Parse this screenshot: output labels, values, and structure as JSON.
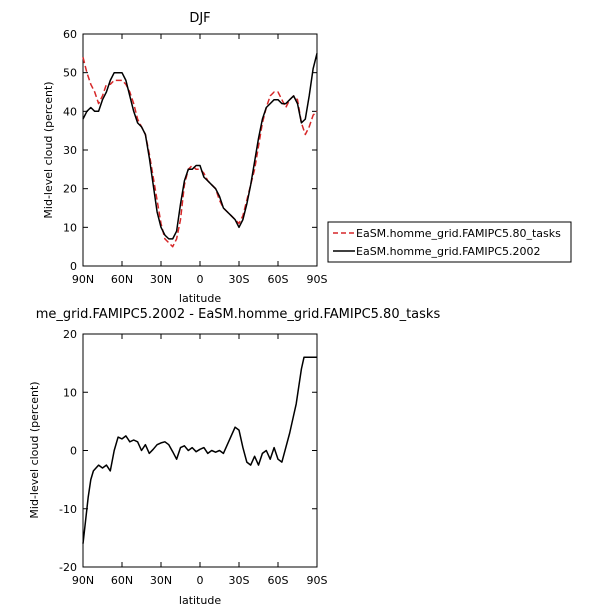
{
  "chart_data": [
    {
      "type": "line",
      "title": "DJF",
      "xlabel": "latitude",
      "ylabel": "Mid-level cloud (percent)",
      "xlim": [
        90,
        -90
      ],
      "ylim": [
        0,
        60
      ],
      "xtick_values": [
        90,
        60,
        30,
        0,
        -30,
        -60,
        -90
      ],
      "xtick_labels": [
        "90N",
        "60N",
        "30N",
        "0",
        "30S",
        "60S",
        "90S"
      ],
      "ytick_values": [
        0,
        10,
        20,
        30,
        40,
        50,
        60
      ],
      "ytick_labels": [
        "0",
        "10",
        "20",
        "30",
        "40",
        "50",
        "60"
      ],
      "legend": {
        "placement": "right-outside"
      },
      "series": [
        {
          "name": "EaSM.homme_grid.FAMIPC5.80_tasks",
          "color": "#d62728",
          "dash": "dashed",
          "x": [
            90,
            87,
            84,
            81,
            78,
            75,
            72,
            69,
            66,
            63,
            60,
            57,
            54,
            51,
            48,
            45,
            42,
            39,
            36,
            33,
            30,
            27,
            24,
            21,
            18,
            15,
            12,
            9,
            6,
            3,
            0,
            -3,
            -6,
            -9,
            -12,
            -15,
            -18,
            -21,
            -24,
            -27,
            -30,
            -33,
            -36,
            -39,
            -42,
            -45,
            -48,
            -51,
            -54,
            -57,
            -60,
            -63,
            -66,
            -69,
            -72,
            -75,
            -78,
            -81,
            -84,
            -87,
            -90
          ],
          "y": [
            54,
            50,
            47,
            45,
            42,
            44,
            47,
            47,
            48,
            48,
            48,
            47,
            45,
            42,
            38,
            36,
            34,
            29,
            23,
            17,
            11,
            7,
            6,
            5,
            7,
            12,
            21,
            25,
            26,
            25,
            25,
            24,
            22,
            21,
            20,
            17,
            15,
            14,
            13,
            12,
            11,
            13,
            17,
            21,
            25,
            31,
            37,
            41,
            44,
            45,
            45,
            43,
            41,
            43,
            44,
            43,
            37,
            34,
            36,
            39,
            40
          ]
        },
        {
          "name": "EaSM.homme_grid.FAMIPC5.2002",
          "color": "#000000",
          "dash": "solid",
          "x": [
            90,
            87,
            84,
            81,
            78,
            75,
            72,
            69,
            66,
            63,
            60,
            57,
            54,
            51,
            48,
            45,
            42,
            39,
            36,
            33,
            30,
            27,
            24,
            21,
            18,
            15,
            12,
            9,
            6,
            3,
            0,
            -3,
            -6,
            -9,
            -12,
            -15,
            -18,
            -21,
            -24,
            -27,
            -30,
            -33,
            -36,
            -39,
            -42,
            -45,
            -48,
            -51,
            -54,
            -57,
            -60,
            -63,
            -66,
            -69,
            -72,
            -75,
            -78,
            -81,
            -84,
            -87,
            -90
          ],
          "y": [
            38,
            40,
            41,
            40,
            40,
            43,
            45,
            48,
            50,
            50,
            50,
            48,
            44,
            40,
            37,
            36,
            34,
            28,
            21,
            14,
            10,
            8,
            7,
            7,
            9,
            16,
            22,
            25,
            25,
            26,
            26,
            23,
            22,
            21,
            20,
            18,
            15,
            14,
            13,
            12,
            10,
            12,
            16,
            21,
            27,
            33,
            38,
            41,
            42,
            43,
            43,
            42,
            42,
            43,
            44,
            42,
            37,
            38,
            44,
            51,
            55
          ]
        }
      ]
    },
    {
      "type": "line",
      "title": "me_grid.FAMIPC5.2002 - EaSM.homme_grid.FAMIPC5.80_tasks",
      "xlabel": "latitude",
      "ylabel": "Mid-level cloud (percent)",
      "xlim": [
        90,
        -90
      ],
      "ylim": [
        -20,
        20
      ],
      "xtick_values": [
        90,
        60,
        30,
        0,
        -30,
        -60,
        -90
      ],
      "xtick_labels": [
        "90N",
        "60N",
        "30N",
        "0",
        "30S",
        "60S",
        "90S"
      ],
      "ytick_values": [
        -20,
        -10,
        0,
        10,
        20
      ],
      "ytick_labels": [
        "-20",
        "-10",
        "0",
        "10",
        "20"
      ],
      "series": [
        {
          "color": "#000000",
          "dash": "solid",
          "x": [
            90,
            88,
            86,
            84,
            82,
            80,
            78,
            75,
            72,
            69,
            66,
            63,
            60,
            57,
            54,
            51,
            48,
            45,
            42,
            39,
            36,
            33,
            30,
            27,
            24,
            21,
            18,
            15,
            12,
            9,
            6,
            3,
            0,
            -3,
            -6,
            -9,
            -12,
            -15,
            -18,
            -21,
            -24,
            -27,
            -30,
            -33,
            -36,
            -39,
            -42,
            -45,
            -48,
            -51,
            -54,
            -57,
            -60,
            -63,
            -66,
            -69,
            -72,
            -74,
            -76,
            -78,
            -80,
            -82,
            -84,
            -86,
            -88,
            -90
          ],
          "y": [
            -16,
            -12,
            -8,
            -5,
            -3.5,
            -3,
            -2.5,
            -3,
            -2.5,
            -3.5,
            0,
            2.3,
            2,
            2.5,
            1.5,
            1.8,
            1.5,
            0,
            1,
            -0.5,
            0.2,
            1,
            1.3,
            1.5,
            1,
            -0.2,
            -1.5,
            0.5,
            0.8,
            0,
            0.5,
            -0.2,
            0.2,
            0.5,
            -0.5,
            0,
            -0.3,
            0,
            -0.5,
            1,
            2.5,
            4,
            3.5,
            0.5,
            -2,
            -2.5,
            -1,
            -2.5,
            -0.5,
            0,
            -1.5,
            0.5,
            -1.5,
            -2,
            0.5,
            3,
            6,
            8,
            11,
            14,
            16,
            16,
            16,
            16,
            16,
            16
          ]
        }
      ]
    }
  ]
}
